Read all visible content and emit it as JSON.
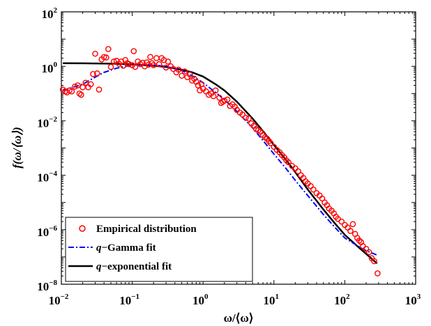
{
  "chart_data": {
    "type": "scatter",
    "xscale": "log",
    "yscale": "log",
    "xlim": [
      0.01,
      1000
    ],
    "ylim": [
      1e-08,
      100
    ],
    "x_ticks": [
      {
        "base": "10",
        "exp": "−2",
        "value": 0.01
      },
      {
        "base": "10",
        "exp": "−1",
        "value": 0.1
      },
      {
        "base": "10",
        "exp": "0",
        "value": 1
      },
      {
        "base": "10",
        "exp": "1",
        "value": 10
      },
      {
        "base": "10",
        "exp": "2",
        "value": 100
      },
      {
        "base": "10",
        "exp": "3",
        "value": 1000
      }
    ],
    "y_ticks": [
      {
        "base": "10",
        "exp": "−8",
        "value": 1e-08
      },
      {
        "base": "10",
        "exp": "−6",
        "value": 1e-06
      },
      {
        "base": "10",
        "exp": "−4",
        "value": 0.0001
      },
      {
        "base": "10",
        "exp": "−2",
        "value": 0.01
      },
      {
        "base": "10",
        "exp": "0",
        "value": 1
      },
      {
        "base": "10",
        "exp": "2",
        "value": 100
      }
    ],
    "xlabel": "ω/⟨ω⟩",
    "ylabel": "f(ω/⟨ω⟩)",
    "legend": {
      "position": "bottom-left",
      "entries": [
        {
          "prefix": "",
          "label": "Empirical distribution",
          "series": "empirical"
        },
        {
          "prefix": "q",
          "label": "−Gamma fit",
          "series": "qgamma"
        },
        {
          "prefix": "q",
          "label": "−exponential fit",
          "series": "qexp"
        }
      ]
    },
    "series": [
      {
        "id": "empirical",
        "style": "markers",
        "color": "#ff0000",
        "points": [
          [
            0.0105,
            0.14
          ],
          [
            0.0113,
            0.12
          ],
          [
            0.012,
            0.11
          ],
          [
            0.013,
            0.13
          ],
          [
            0.014,
            0.12
          ],
          [
            0.0155,
            0.18
          ],
          [
            0.017,
            0.2
          ],
          [
            0.018,
            0.1
          ],
          [
            0.019,
            0.09
          ],
          [
            0.02,
            0.17
          ],
          [
            0.022,
            0.25
          ],
          [
            0.024,
            0.17
          ],
          [
            0.026,
            0.22
          ],
          [
            0.028,
            0.52
          ],
          [
            0.03,
            2.9
          ],
          [
            0.032,
            0.55
          ],
          [
            0.034,
            0.14
          ],
          [
            0.037,
            1.8
          ],
          [
            0.04,
            2.2
          ],
          [
            0.043,
            2.1
          ],
          [
            0.046,
            4.3
          ],
          [
            0.05,
            0.95
          ],
          [
            0.055,
            1.5
          ],
          [
            0.06,
            1.6
          ],
          [
            0.065,
            1.25
          ],
          [
            0.07,
            1.5
          ],
          [
            0.075,
            1.05
          ],
          [
            0.08,
            1.7
          ],
          [
            0.085,
            1.3
          ],
          [
            0.09,
            1.2
          ],
          [
            0.1,
            1.1
          ],
          [
            0.105,
            3.6
          ],
          [
            0.11,
            0.95
          ],
          [
            0.12,
            1.5
          ],
          [
            0.13,
            1.2
          ],
          [
            0.14,
            1.35
          ],
          [
            0.15,
            1.0
          ],
          [
            0.16,
            1.4
          ],
          [
            0.17,
            1.15
          ],
          [
            0.18,
            2.2
          ],
          [
            0.19,
            1.3
          ],
          [
            0.2,
            1.1
          ],
          [
            0.22,
            2.0
          ],
          [
            0.24,
            1.2
          ],
          [
            0.26,
            2.0
          ],
          [
            0.28,
            1.7
          ],
          [
            0.3,
            0.9
          ],
          [
            0.32,
            1.5
          ],
          [
            0.35,
            1.0
          ],
          [
            0.38,
            0.8
          ],
          [
            0.42,
            0.6
          ],
          [
            0.45,
            0.75
          ],
          [
            0.5,
            0.45
          ],
          [
            0.55,
            0.65
          ],
          [
            0.6,
            0.4
          ],
          [
            0.65,
            0.5
          ],
          [
            0.7,
            0.3
          ],
          [
            0.75,
            0.35
          ],
          [
            0.8,
            0.27
          ],
          [
            0.85,
            0.2
          ],
          [
            0.9,
            0.13
          ],
          [
            0.95,
            0.22
          ],
          [
            1.0,
            0.15
          ],
          [
            1.1,
            0.12
          ],
          [
            1.2,
            0.09
          ],
          [
            1.3,
            0.1
          ],
          [
            1.4,
            0.08
          ],
          [
            1.5,
            0.13
          ],
          [
            1.7,
            0.07
          ],
          [
            1.8,
            0.045
          ],
          [
            1.9,
            0.05
          ],
          [
            2.0,
            0.055
          ],
          [
            2.2,
            0.06
          ],
          [
            2.4,
            0.035
          ],
          [
            2.6,
            0.04
          ],
          [
            2.8,
            0.033
          ],
          [
            3.0,
            0.025
          ],
          [
            3.3,
            0.02
          ],
          [
            3.6,
            0.017
          ],
          [
            4.0,
            0.013
          ],
          [
            4.4,
            0.012
          ],
          [
            4.8,
            0.008
          ],
          [
            5.2,
            0.0065
          ],
          [
            5.6,
            0.005
          ],
          [
            6.0,
            0.0045
          ],
          [
            6.5,
            0.004
          ],
          [
            7.0,
            0.003
          ],
          [
            7.5,
            0.0025
          ],
          [
            8.0,
            0.0022
          ],
          [
            8.5,
            0.0018
          ],
          [
            9.0,
            0.0015
          ],
          [
            10.0,
            0.0011
          ],
          [
            11.0,
            0.00085
          ],
          [
            12.0,
            0.0007
          ],
          [
            13.0,
            0.00055
          ],
          [
            14.0,
            0.00045
          ],
          [
            15.0,
            0.00035
          ],
          [
            16.0,
            0.0003
          ],
          [
            18.0,
            0.00022
          ],
          [
            20.0,
            0.00018
          ],
          [
            22.0,
            0.00014
          ],
          [
            24.0,
            0.0001
          ],
          [
            26.0,
            8e-05
          ],
          [
            28.0,
            6e-05
          ],
          [
            30.0,
            5e-05
          ],
          [
            33.0,
            4e-05
          ],
          [
            36.0,
            3e-05
          ],
          [
            40.0,
            2.2e-05
          ],
          [
            44.0,
            1.8e-05
          ],
          [
            48.0,
            1.4e-05
          ],
          [
            52.0,
            1e-05
          ],
          [
            56.0,
            8e-06
          ],
          [
            60.0,
            6e-06
          ],
          [
            65.0,
            5e-06
          ],
          [
            70.0,
            4e-06
          ],
          [
            75.0,
            3e-06
          ],
          [
            80.0,
            2.5e-06
          ],
          [
            90.0,
            2e-06
          ],
          [
            100.0,
            1.5e-06
          ],
          [
            110.0,
            1.2e-06
          ],
          [
            120.0,
            9e-07
          ],
          [
            130.0,
            1.6e-06
          ],
          [
            140.0,
            7e-07
          ],
          [
            150.0,
            5e-07
          ],
          [
            160.0,
            4e-07
          ],
          [
            170.0,
            3.5e-07
          ],
          [
            180.0,
            2.5e-07
          ],
          [
            200.0,
            2e-07
          ],
          [
            220.0,
            1.5e-07
          ],
          [
            240.0,
            9e-08
          ],
          [
            260.0,
            7e-08
          ],
          [
            290.0,
            2.5e-08
          ]
        ]
      },
      {
        "id": "qgamma",
        "style": "dash-dot",
        "color": "#0000ff",
        "points": [
          [
            0.0105,
            0.13
          ],
          [
            0.02,
            0.22
          ],
          [
            0.03,
            0.4
          ],
          [
            0.04,
            0.6
          ],
          [
            0.06,
            0.85
          ],
          [
            0.08,
            1.0
          ],
          [
            0.1,
            1.1
          ],
          [
            0.15,
            1.15
          ],
          [
            0.2,
            1.12
          ],
          [
            0.3,
            1.0
          ],
          [
            0.5,
            0.7
          ],
          [
            0.7,
            0.45
          ],
          [
            1.0,
            0.25
          ],
          [
            1.5,
            0.11
          ],
          [
            2.0,
            0.06
          ],
          [
            3.0,
            0.022
          ],
          [
            5.0,
            0.0055
          ],
          [
            7.0,
            0.0019
          ],
          [
            10.0,
            0.0006
          ],
          [
            15.0,
            0.00017
          ],
          [
            20.0,
            6.5e-05
          ],
          [
            30.0,
            1.8e-05
          ],
          [
            50.0,
            3.6e-06
          ],
          [
            70.0,
            1.35e-06
          ],
          [
            100.0,
            5e-07
          ],
          [
            150.0,
            2.6e-07
          ],
          [
            200.0,
            1.7e-07
          ],
          [
            280.0,
            1.2e-07
          ]
        ]
      },
      {
        "id": "qexp",
        "style": "solid",
        "color": "#000000",
        "points": [
          [
            0.0105,
            1.3
          ],
          [
            0.02,
            1.29
          ],
          [
            0.05,
            1.25
          ],
          [
            0.1,
            1.18
          ],
          [
            0.2,
            1.05
          ],
          [
            0.3,
            0.95
          ],
          [
            0.5,
            0.75
          ],
          [
            0.7,
            0.6
          ],
          [
            1.0,
            0.42
          ],
          [
            1.5,
            0.22
          ],
          [
            2.0,
            0.13
          ],
          [
            3.0,
            0.05
          ],
          [
            5.0,
            0.012
          ],
          [
            7.0,
            0.0042
          ],
          [
            10.0,
            0.0013
          ],
          [
            15.0,
            0.00035
          ],
          [
            20.0,
            0.00013
          ],
          [
            30.0,
            3e-05
          ],
          [
            50.0,
            5.5e-06
          ],
          [
            70.0,
            1.9e-06
          ],
          [
            100.0,
            6.5e-07
          ],
          [
            150.0,
            2.5e-07
          ],
          [
            200.0,
            1.3e-07
          ],
          [
            285.0,
            5.8e-08
          ]
        ]
      }
    ]
  }
}
